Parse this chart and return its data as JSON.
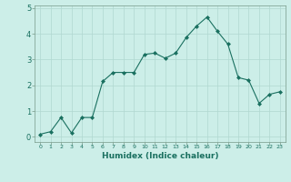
{
  "x": [
    0,
    1,
    2,
    3,
    4,
    5,
    6,
    7,
    8,
    9,
    10,
    11,
    12,
    13,
    14,
    15,
    16,
    17,
    18,
    19,
    20,
    21,
    22,
    23
  ],
  "y": [
    0.1,
    0.2,
    0.75,
    0.15,
    0.75,
    0.75,
    2.15,
    2.5,
    2.5,
    2.5,
    3.2,
    3.25,
    3.05,
    3.25,
    3.85,
    4.3,
    4.65,
    4.1,
    3.6,
    2.3,
    2.2,
    1.3,
    1.65,
    1.75
  ],
  "xlabel": "Humidex (Indice chaleur)",
  "bg_color": "#cceee8",
  "line_color": "#1a7060",
  "marker_color": "#1a7060",
  "grid_color": "#b0d8d0",
  "ylim": [
    -0.2,
    5.1
  ],
  "xlim": [
    -0.5,
    23.5
  ],
  "yticks": [
    0,
    1,
    2,
    3,
    4,
    5
  ],
  "xticks": [
    0,
    1,
    2,
    3,
    4,
    5,
    6,
    7,
    8,
    9,
    10,
    11,
    12,
    13,
    14,
    15,
    16,
    17,
    18,
    19,
    20,
    21,
    22,
    23
  ],
  "xlabel_fontsize": 6.5,
  "xtick_fontsize": 4.5,
  "ytick_fontsize": 6.0
}
